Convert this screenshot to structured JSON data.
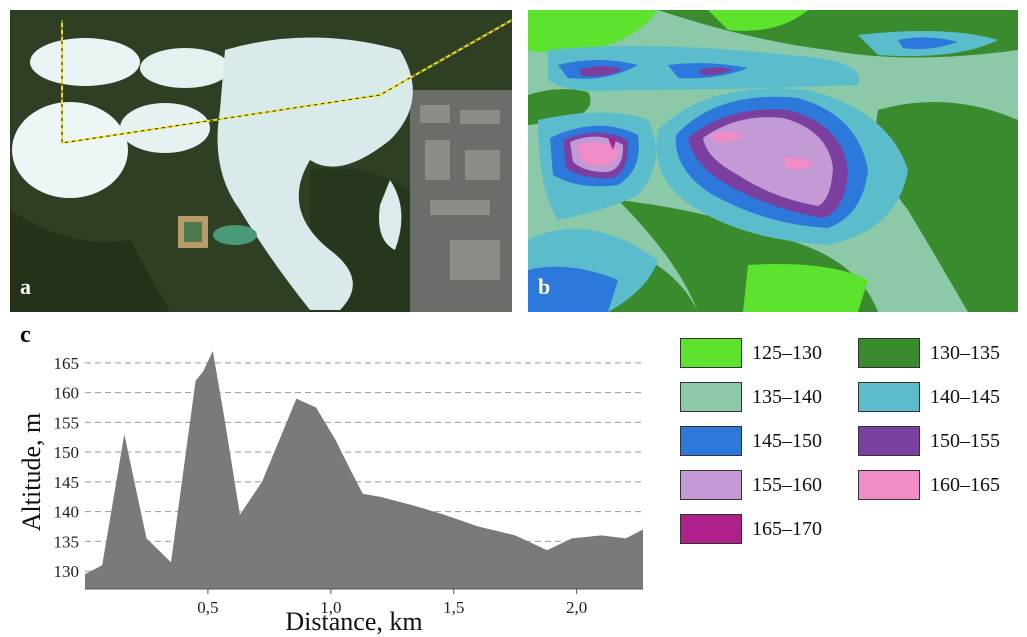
{
  "panels": {
    "a": {
      "letter": "a"
    },
    "b": {
      "letter": "b"
    },
    "c": {
      "letter": "c"
    }
  },
  "chart_data": {
    "type": "area",
    "title": "",
    "xlabel": "Distance, km",
    "ylabel": "Altitude, m",
    "xlim": [
      0,
      2.27
    ],
    "ylim": [
      127,
      168
    ],
    "x_ticks": [
      0.5,
      1.0,
      1.5,
      2.0
    ],
    "x_tick_labels": [
      "0,5",
      "1,0",
      "1,5",
      "2,0"
    ],
    "y_ticks": [
      130,
      135,
      140,
      145,
      150,
      155,
      160,
      165
    ],
    "grid": "horizontal dashed",
    "fill_color": "#7a7a7a",
    "x": [
      0.0,
      0.07,
      0.16,
      0.25,
      0.35,
      0.45,
      0.48,
      0.52,
      0.57,
      0.63,
      0.72,
      0.79,
      0.86,
      0.94,
      1.02,
      1.08,
      1.13,
      1.2,
      1.34,
      1.46,
      1.6,
      1.75,
      1.88,
      1.98,
      2.1,
      2.2,
      2.27
    ],
    "y": [
      129.5,
      131,
      153,
      135.5,
      131.5,
      162,
      163.5,
      167,
      155,
      139.5,
      145,
      152,
      159,
      157.5,
      152,
      147,
      143,
      142.5,
      141,
      139.5,
      137.5,
      136,
      133.5,
      135.5,
      136,
      135.5,
      137
    ],
    "legend": [
      {
        "label": "125–130",
        "color": "#5de22d"
      },
      {
        "label": "130–135",
        "color": "#3a8a2e"
      },
      {
        "label": "135–140",
        "color": "#8cc9a9"
      },
      {
        "label": "140–145",
        "color": "#5bbdcb"
      },
      {
        "label": "145–150",
        "color": "#2d78db"
      },
      {
        "label": "150–155",
        "color": "#7b3fa0"
      },
      {
        "label": "155–160",
        "color": "#c49ad6"
      },
      {
        "label": "160–165",
        "color": "#f28cc9"
      },
      {
        "label": "165–170",
        "color": "#b0208a"
      }
    ]
  }
}
